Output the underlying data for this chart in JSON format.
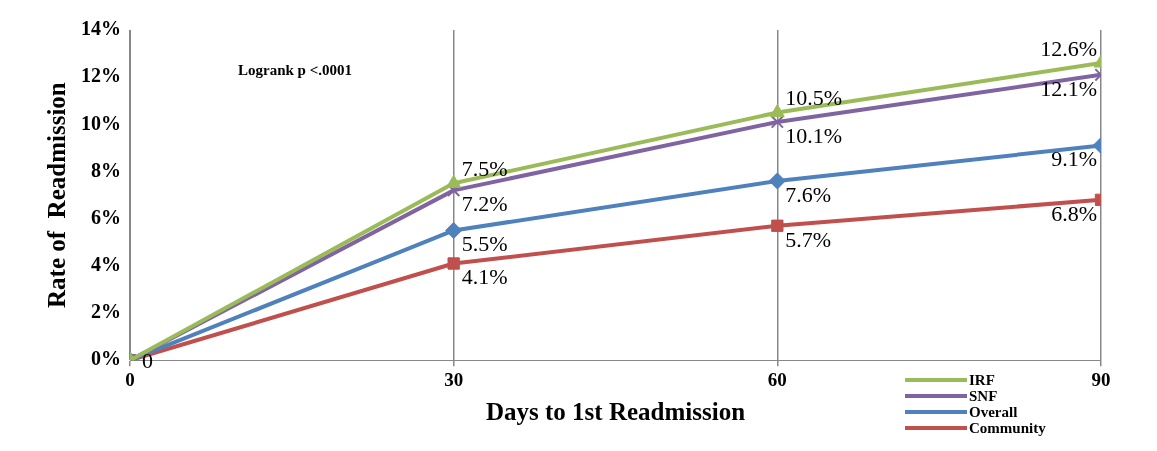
{
  "chart_data": {
    "type": "line",
    "xlabel": "Days to 1st Readmission",
    "ylabel": "Rate of  Readmission",
    "x": [
      0,
      30,
      60,
      90
    ],
    "xlim": [
      0,
      90
    ],
    "xticks": [
      0,
      30,
      60,
      90
    ],
    "ylim": [
      0,
      14
    ],
    "yticks": [
      {
        "value": 0,
        "label": "0%"
      },
      {
        "value": 2,
        "label": "2%"
      },
      {
        "value": 4,
        "label": "4%"
      },
      {
        "value": 6,
        "label": "6%"
      },
      {
        "value": 8,
        "label": "8%"
      },
      {
        "value": 10,
        "label": "10%"
      },
      {
        "value": 12,
        "label": "12%"
      },
      {
        "value": 14,
        "label": "14%"
      }
    ],
    "grid": "x",
    "legend": "bottom right",
    "line_style": "solid",
    "annotations": [
      "Logrank p <.0001"
    ],
    "series": [
      {
        "name": "IRF",
        "color": "#9bbb59",
        "marker": "triangle",
        "values": [
          0,
          7.5,
          10.5,
          12.6
        ],
        "value_labels": [
          null,
          "7.5%",
          "10.5%",
          "12.6%"
        ]
      },
      {
        "name": "SNF",
        "color": "#8064a2",
        "marker": "cross",
        "values": [
          0,
          7.2,
          10.1,
          12.1
        ],
        "value_labels": [
          null,
          "7.2%",
          "10.1%",
          "12.1%"
        ]
      },
      {
        "name": "Overall",
        "color": "#4f81bd",
        "marker": "diamond",
        "values": [
          0,
          5.5,
          7.6,
          9.1
        ],
        "value_labels": [
          null,
          "5.5%",
          "7.6%",
          "9.1%"
        ]
      },
      {
        "name": "Community",
        "color": "#c0504d",
        "marker": "square",
        "values": [
          0,
          4.1,
          5.7,
          6.8
        ],
        "value_labels": [
          "0",
          "4.1%",
          "5.7%",
          "6.8%"
        ]
      }
    ]
  }
}
